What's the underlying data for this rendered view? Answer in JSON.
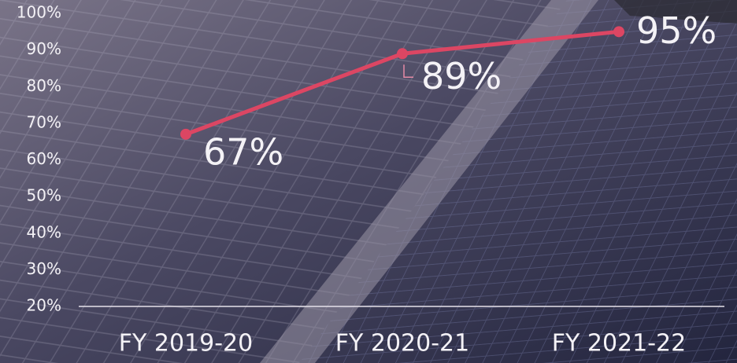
{
  "chart_data": {
    "type": "line",
    "categories": [
      "FY 2019-20",
      "FY 2020-21",
      "FY 2021-22"
    ],
    "series": [
      {
        "name": null,
        "color": "#dc4663",
        "values": [
          67,
          89,
          95
        ],
        "value_labels": [
          "67%",
          "89%",
          "95%"
        ]
      }
    ],
    "ylim": [
      20,
      100
    ],
    "yticks": [
      {
        "value": 20,
        "label": "20%"
      },
      {
        "value": 30,
        "label": "30%"
      },
      {
        "value": 40,
        "label": "40%"
      },
      {
        "value": 50,
        "label": "50%"
      },
      {
        "value": 60,
        "label": "60%"
      },
      {
        "value": 70,
        "label": "70%"
      },
      {
        "value": 80,
        "label": "80%"
      },
      {
        "value": 90,
        "label": "90%"
      },
      {
        "value": 100,
        "label": "100%"
      }
    ]
  }
}
